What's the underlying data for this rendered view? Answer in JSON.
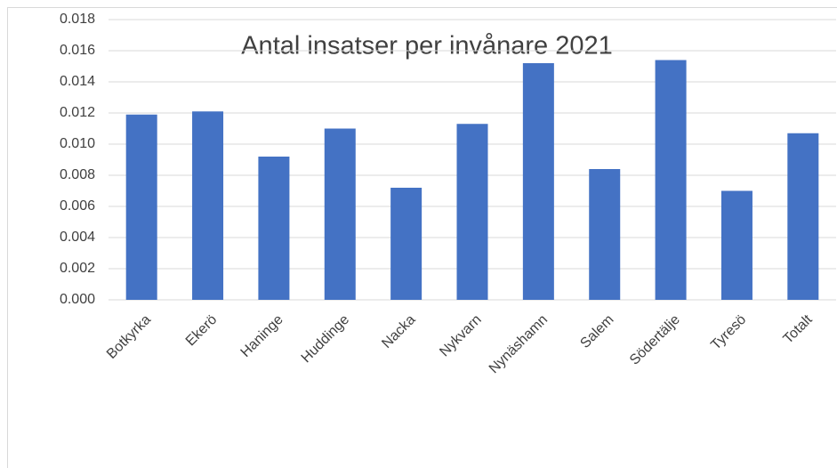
{
  "chart_data": {
    "type": "bar",
    "title": "Antal insatser per invånare  2021",
    "categories": [
      "Botkyrka",
      "Ekerö",
      "Haninge",
      "Huddinge",
      "Nacka",
      "Nykvarn",
      "Nynäshamn",
      "Salem",
      "Södertälje",
      "Tyresö",
      "Totalt"
    ],
    "values": [
      0.0119,
      0.0121,
      0.0092,
      0.011,
      0.0072,
      0.0113,
      0.0152,
      0.0084,
      0.0154,
      0.007,
      0.0107
    ],
    "color": "#4472c4",
    "ylim": [
      0,
      0.018
    ],
    "yticks": [
      {
        "value": 0,
        "label": "0.000"
      },
      {
        "value": 0.002,
        "label": "0.002"
      },
      {
        "value": 0.004,
        "label": "0.004"
      },
      {
        "value": 0.006,
        "label": "0.006"
      },
      {
        "value": 0.008,
        "label": "0.008"
      },
      {
        "value": 0.01,
        "label": "0.010"
      },
      {
        "value": 0.012,
        "label": "0.012"
      },
      {
        "value": 0.014,
        "label": "0.014"
      },
      {
        "value": 0.016,
        "label": "0.016"
      },
      {
        "value": 0.018,
        "label": "0.018"
      }
    ],
    "grid": true
  }
}
